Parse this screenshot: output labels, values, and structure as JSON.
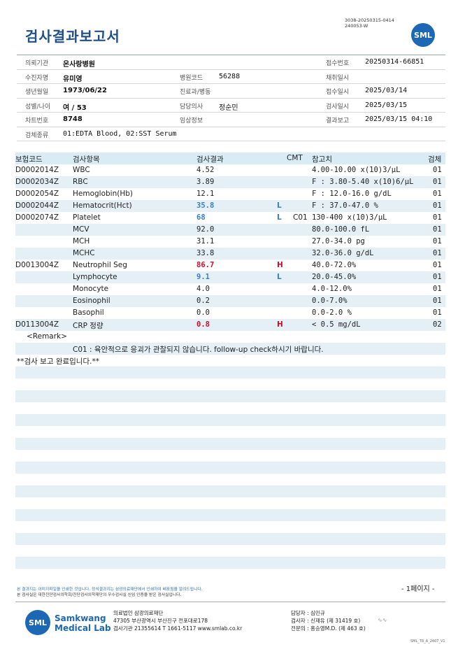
{
  "doc_code": [
    "3038-20250315-0414",
    "240053-W"
  ],
  "title": "검사결과보고서",
  "logo": "SML",
  "info": {
    "institution_label": "의뢰기관",
    "institution": "온사랑병원",
    "receipt_no_label": "접수번호",
    "receipt_no": "20250314-66851",
    "patient_label": "수진자명",
    "patient": "유미영",
    "hospital_code_label": "병원코드",
    "hospital_code": "56288",
    "collect_date_label": "채취일시",
    "collect_date": "",
    "dob_label": "생년월일",
    "dob": "1973/06/22",
    "dept_label": "진료과/병동",
    "dept": "",
    "receipt_date_label": "접수일시",
    "receipt_date": "2025/03/14",
    "sex_age_label": "성별/나이",
    "sex_age": "여 / 53",
    "doctor_label": "담당의사",
    "doctor": "정순민",
    "test_date_label": "검사일시",
    "test_date": "2025/03/15",
    "chart_no_label": "차트번호",
    "chart_no": "8748",
    "clinical_label": "임상정보",
    "clinical": "",
    "report_label": "결과보고",
    "report": "2025/03/15 04:10",
    "specimen_label": "검체종류",
    "specimen": "01:EDTA Blood, 02:SST Serum"
  },
  "columns": {
    "code": "보험코드",
    "item": "검사항목",
    "result": "검사결과",
    "cmt": "CMT",
    "ref": "참고치",
    "spec": "검체"
  },
  "rows": [
    {
      "code": "D0002014Z",
      "item": "WBC",
      "result": "4.52",
      "flag": "",
      "cmt": "",
      "ref": "4.00-10.00 x(10)3/μL",
      "spec": "01"
    },
    {
      "code": "D0002034Z",
      "item": "RBC",
      "result": "3.89",
      "flag": "",
      "cmt": "",
      "ref": "F : 3.80-5.40 x(10)6/μL",
      "spec": "01"
    },
    {
      "code": "D0002054Z",
      "item": "Hemoglobin(Hb)",
      "result": "12.1",
      "flag": "",
      "cmt": "",
      "ref": "F : 12.0-16.0 g/dL",
      "spec": "01"
    },
    {
      "code": "D0002044Z",
      "item": "Hematocrit(Hct)",
      "result": "35.8",
      "flag": "L",
      "cmt": "",
      "ref": "F : 37.0-47.0 %",
      "spec": "01"
    },
    {
      "code": "D0002074Z",
      "item": "Platelet",
      "result": "68",
      "flag": "L",
      "cmt": "C01",
      "ref": "130-400 x(10)3/μL",
      "spec": "01"
    },
    {
      "code": "",
      "item": "MCV",
      "result": "92.0",
      "flag": "",
      "cmt": "",
      "ref": "80.0-100.0 fL",
      "spec": "01"
    },
    {
      "code": "",
      "item": "MCH",
      "result": "31.1",
      "flag": "",
      "cmt": "",
      "ref": "27.0-34.0 pg",
      "spec": "01"
    },
    {
      "code": "",
      "item": "MCHC",
      "result": "33.8",
      "flag": "",
      "cmt": "",
      "ref": "32.0-36.0 g/dL",
      "spec": "01"
    },
    {
      "code": "D0013004Z",
      "item": "Neutrophil Seg",
      "result": "86.7",
      "flag": "H",
      "cmt": "",
      "ref": "40.0-72.0%",
      "spec": "01"
    },
    {
      "code": "",
      "item": "Lymphocyte",
      "result": "9.1",
      "flag": "L",
      "cmt": "",
      "ref": "20.0-45.0%",
      "spec": "01"
    },
    {
      "code": "",
      "item": "Monocyte",
      "result": "4.0",
      "flag": "",
      "cmt": "",
      "ref": "4.0-12.0%",
      "spec": "01"
    },
    {
      "code": "",
      "item": "Eosinophil",
      "result": "0.2",
      "flag": "",
      "cmt": "",
      "ref": "0.0-7.0%",
      "spec": "01"
    },
    {
      "code": "",
      "item": "Basophil",
      "result": "0.0",
      "flag": "",
      "cmt": "",
      "ref": "0.0-2.0 %",
      "spec": "01"
    },
    {
      "code": "D0113004Z",
      "item": "CRP 정량",
      "result": "0.8",
      "flag": "H",
      "cmt": "",
      "ref": "< 0.5 mg/dL",
      "spec": "02"
    }
  ],
  "remark_label": "<Remark>",
  "remark": "C01 : 육안적으로 응괴가 관찰되지 않습니다. follow-up check하시기 바랍니다.",
  "completion": "**검사 보고 완료입니다.**",
  "footer": {
    "note1": "본 결과지는 이미지파일을 인쇄한 것입니다. 정식결과지는 삼광의료재단에서 인쇄하여 배포됨을 알려드립니다.",
    "note2": "본 검사실은 대한진단검사의학회/진단검사의학재단의 우수검사실 신임 인증을 받은 검사실입니다.",
    "page": "- 1페이지 -",
    "lab_line1": "Samkwang",
    "lab_line2": "Medical Lab",
    "addr1": "의료법인 삼광의료재단",
    "addr2": "47305 부산광역시 부산진구 전포대로178",
    "addr3": "검사기관 21355614 T 1661-5117 www.smlab.co.kr",
    "staff1": "담당자 : 심민규",
    "staff2": "검사자 : 신재유 (제 31419 호)",
    "staff3": "전문의 : 홍승영M.D. (제 463 호)",
    "form_code": "SML_TR_A_2407_V1"
  },
  "colors": {
    "title": "#1f4e8a",
    "high": "#c8102e",
    "low": "#3a7fc4",
    "band": "#e4f0f6",
    "header": "#d9ecf5"
  }
}
